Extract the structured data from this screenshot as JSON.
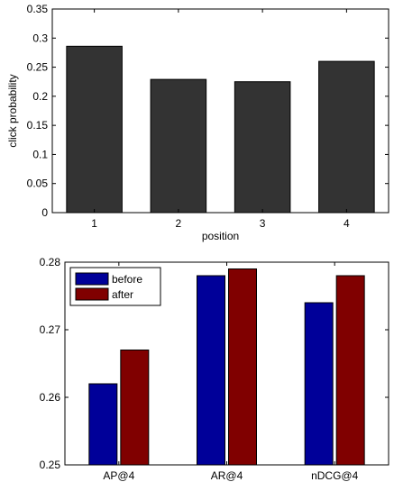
{
  "chart_data": [
    {
      "type": "bar",
      "title": "",
      "xlabel": "position",
      "ylabel": "click probability",
      "categories": [
        "1",
        "2",
        "3",
        "4"
      ],
      "values": [
        0.286,
        0.229,
        0.225,
        0.26
      ],
      "ylim": [
        0,
        0.35
      ],
      "yticks": [
        "0",
        "0.05",
        "0.1",
        "0.15",
        "0.2",
        "0.25",
        "0.3",
        "0.35"
      ],
      "grid": false,
      "color": "#333333"
    },
    {
      "type": "bar",
      "title": "",
      "xlabel": "",
      "ylabel": "",
      "categories": [
        "AP@4",
        "AR@4",
        "nDCG@4"
      ],
      "series": [
        {
          "name": "before",
          "values": [
            0.262,
            0.278,
            0.274
          ],
          "color": "#000099"
        },
        {
          "name": "after",
          "values": [
            0.267,
            0.279,
            0.278
          ],
          "color": "#800000"
        }
      ],
      "ylim": [
        0.25,
        0.28
      ],
      "yticks": [
        "0.25",
        "0.26",
        "0.27",
        "0.28"
      ],
      "legend": "top-left",
      "grid": false
    }
  ]
}
